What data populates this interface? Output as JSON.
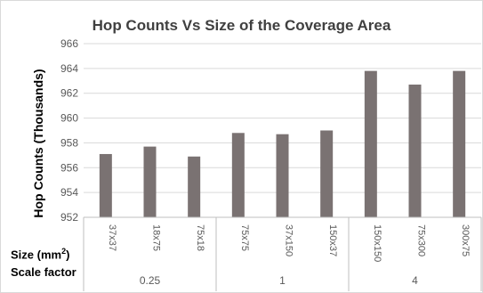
{
  "chart_data": {
    "type": "bar",
    "title": "Hop Counts Vs Size of the Coverage Area",
    "ylabel": "Hop Counts (Thousands)",
    "ylim": [
      952,
      966
    ],
    "yticks": [
      952,
      954,
      956,
      958,
      960,
      962,
      964,
      966
    ],
    "grid": true,
    "categories": [
      "37x37",
      "18x75",
      "75x18",
      "75x75",
      "37x150",
      "150x37",
      "150x150",
      "75x300",
      "300x75"
    ],
    "values": [
      957.1,
      957.7,
      956.9,
      958.8,
      958.7,
      959.0,
      963.8,
      962.7,
      963.8
    ],
    "x_row_labels": {
      "size": "Size (mm",
      "size_sup": "2",
      "size_close": ")",
      "scale": "Scale factor"
    },
    "groups": [
      {
        "label": "0.25",
        "span": 3
      },
      {
        "label": "1",
        "span": 3
      },
      {
        "label": "4",
        "span": 3
      }
    ],
    "colors": {
      "bar": "#7a7272",
      "grid": "#d9d9d9",
      "axis": "#bfbfbf",
      "text": "#595959"
    }
  }
}
